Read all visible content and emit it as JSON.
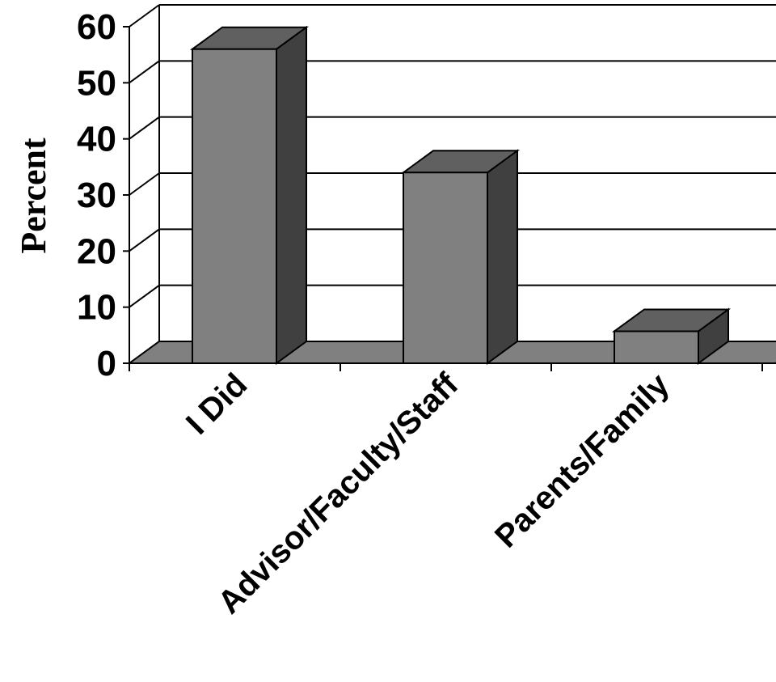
{
  "chart_data": {
    "type": "bar",
    "title": "",
    "xlabel": "",
    "ylabel": "Percent",
    "categories": [
      "I Did",
      "Advisor/Faculty/Staff",
      "Parents/Family"
    ],
    "values": [
      56,
      34,
      5.7
    ],
    "ylim": [
      0,
      60
    ],
    "yticks": [
      0,
      10,
      20,
      30,
      40,
      50,
      60
    ],
    "grid": true,
    "legend": "none",
    "style": "3d-column",
    "colors": {
      "bar_front": "#808080",
      "bar_side": "#404040",
      "bar_top": "#606060",
      "floor": "#808080"
    }
  }
}
